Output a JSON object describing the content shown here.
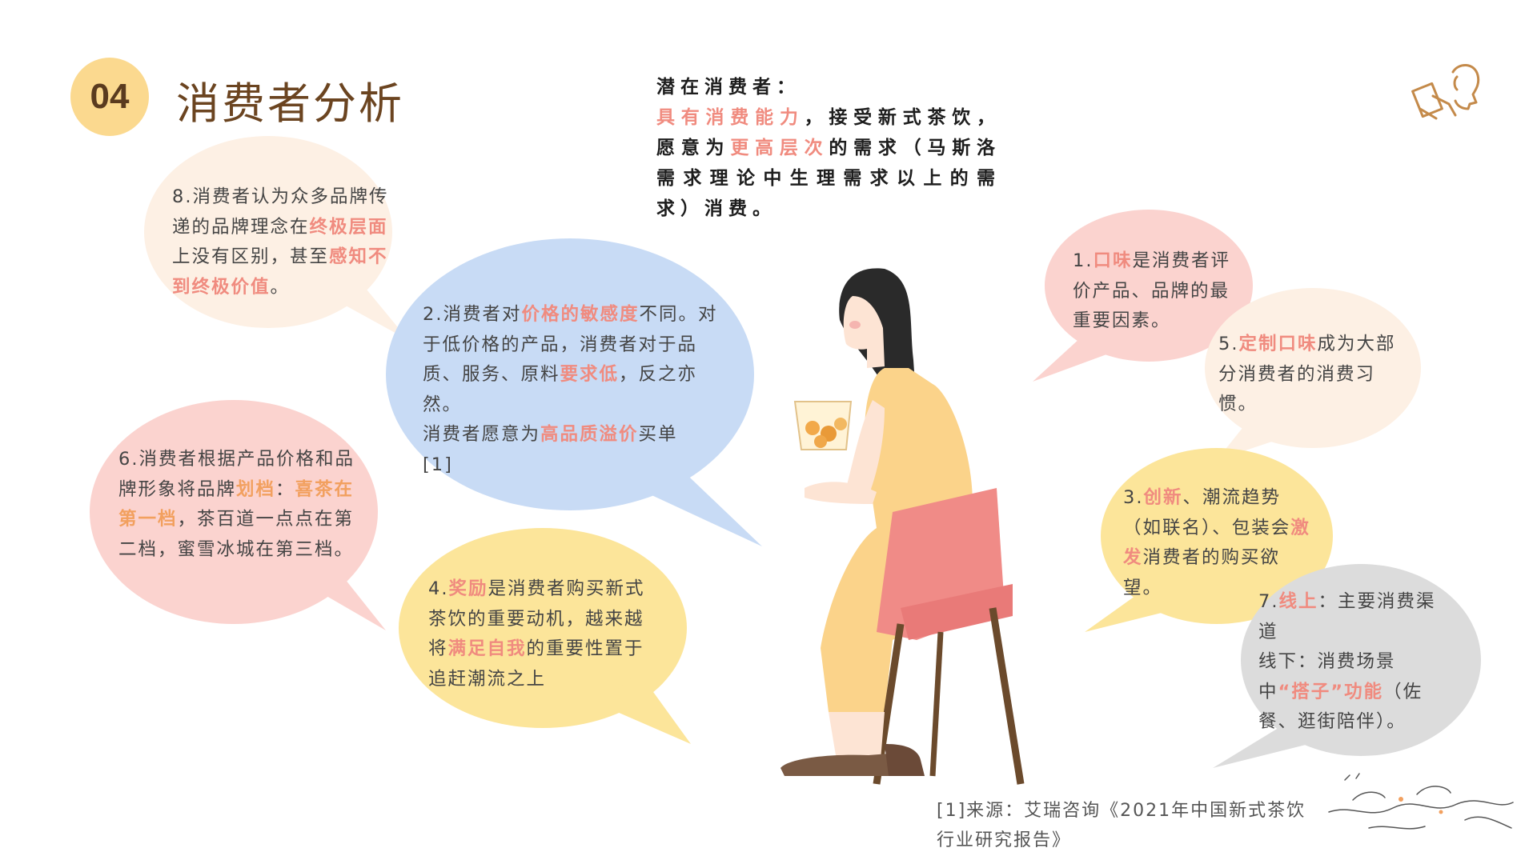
{
  "header": {
    "number": "04",
    "title": "消费者分析"
  },
  "potential": {
    "l1": "潜在消费者：",
    "h1": "具有消费能力",
    "t1": "，接受新式茶饮，愿意为",
    "h2": "更高层次",
    "t2": "的需求（马斯洛需求理论中生理需求以上的需求）消费。"
  },
  "b8": {
    "a": "8.消费者认为众多品牌传递的品牌理念在",
    "h1": "终极层面",
    "b": "上没有区别，甚至",
    "h2": "感知不到终极价值",
    "c": "。"
  },
  "b2": {
    "a": "2.消费者对",
    "h1": "价格的敏感度",
    "b": "不同。对于低价格的产品，消费者对于品质、服务、原料",
    "h2": "要求低",
    "c": "，反之亦然。",
    "d": "消费者愿意为",
    "h3": "高品质溢价",
    "e": "买单",
    "f": "[1]"
  },
  "b6": {
    "a": "6.消费者根据产品价格和品牌形象将品牌",
    "h1": "划档",
    "b": "：",
    "h2": "喜茶在第一档",
    "c": "，茶百道一点点在第二档，蜜雪冰城在第三档。"
  },
  "b4": {
    "a": "4.",
    "h1": "奖励",
    "b": "是消费者购买新式茶饮的重要动机，越来越将",
    "h2": "满足自我",
    "c": "的重要性置于追赶潮流之上"
  },
  "b1": {
    "a": "1.",
    "h1": "口味",
    "b": "是消费者评价产品、品牌的最重要因素。"
  },
  "b5": {
    "a": "5.",
    "h1": "定制口味",
    "b": "成为大部分消费者的消费习惯。"
  },
  "b3": {
    "a": "3.",
    "h1": "创新",
    "b": "、潮流趋势（如联名）、包装会",
    "h2": "激发",
    "c": "消费者的购买欲望。"
  },
  "b7": {
    "a": "7.",
    "h1": "线上",
    "b": "：主要消费渠道",
    "c": "线下：消费场景中",
    "h2": "“搭子”功能",
    "d": "（佐餐、逛街陪伴）。"
  },
  "footnote": "[1]来源：艾瑞咨询《2021年中国新式茶饮行业研究报告》",
  "colors": {
    "peach": "#fdf0e4",
    "blue": "#c8dbf5",
    "pink": "#fbd3cf",
    "yellow": "#fce59a",
    "gray": "#dcdcdc",
    "accent_pink": "#f08b7f",
    "accent_orange": "#f2a05f"
  }
}
